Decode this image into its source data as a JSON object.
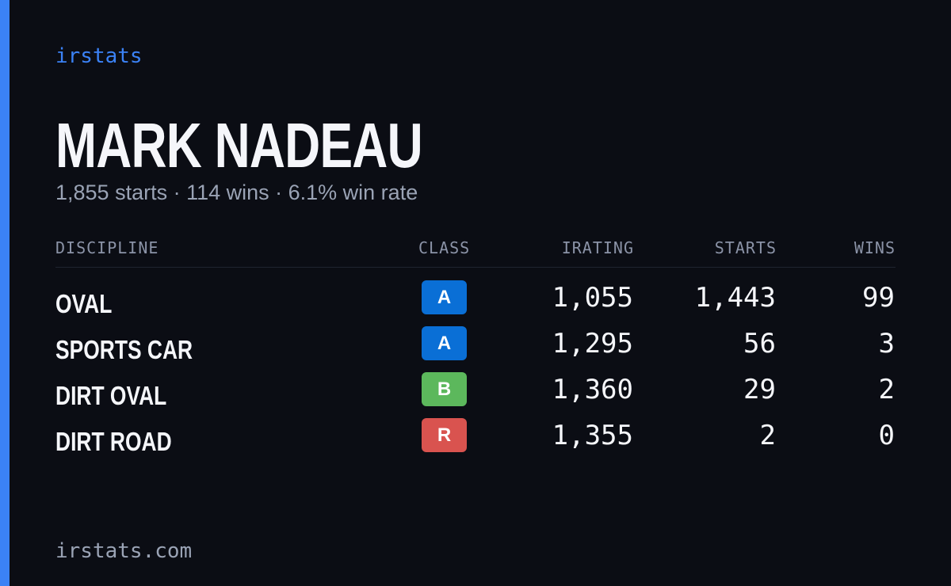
{
  "brand": "irstats",
  "driver": {
    "name": "MARK NADEAU",
    "summary": "1,855 starts · 114 wins · 6.1% win rate"
  },
  "table": {
    "headers": [
      "DISCIPLINE",
      "CLASS",
      "IRATING",
      "STARTS",
      "WINS"
    ],
    "rows": [
      {
        "discipline": "OVAL",
        "class": "A",
        "badge_color": "#0a6fd6",
        "irating": "1,055",
        "starts": "1,443",
        "wins": "99"
      },
      {
        "discipline": "SPORTS CAR",
        "class": "A",
        "badge_color": "#0a6fd6",
        "irating": "1,295",
        "starts": "56",
        "wins": "3"
      },
      {
        "discipline": "DIRT OVAL",
        "class": "B",
        "badge_color": "#5cb85c",
        "irating": "1,360",
        "starts": "29",
        "wins": "2"
      },
      {
        "discipline": "DIRT ROAD",
        "class": "R",
        "badge_color": "#d9534f",
        "irating": "1,355",
        "starts": "2",
        "wins": "0"
      }
    ]
  },
  "footer": {
    "url": "irstats.com"
  }
}
